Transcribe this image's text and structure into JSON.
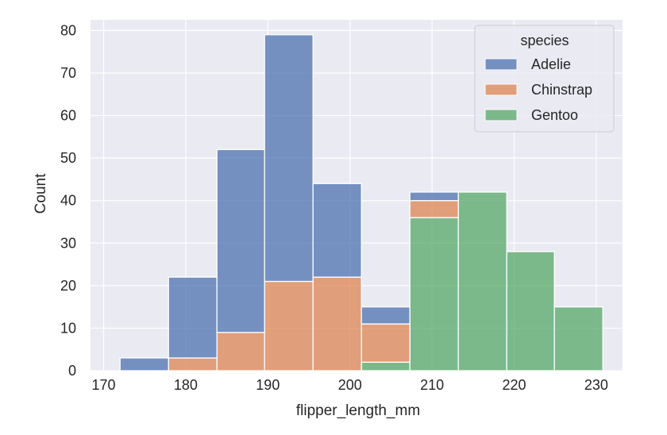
{
  "chart_data": {
    "type": "bar",
    "subtype": "stacked-histogram",
    "xlabel": "flipper_length_mm",
    "ylabel": "Count",
    "xlim": [
      168.4,
      233.2
    ],
    "ylim": [
      0,
      82.5
    ],
    "xticks": [
      170,
      180,
      190,
      200,
      210,
      220,
      230
    ],
    "yticks": [
      0,
      10,
      20,
      30,
      40,
      50,
      60,
      70,
      80
    ],
    "grid": true,
    "legend": {
      "title": "species",
      "placement": "top-right"
    },
    "bin_edges": [
      172.0,
      177.9,
      183.8,
      189.6,
      195.5,
      201.4,
      207.3,
      213.2,
      219.1,
      224.9,
      230.8
    ],
    "series": [
      {
        "name": "Gentoo",
        "color": "#55a868",
        "values": [
          0,
          0,
          0,
          0,
          0,
          2,
          36,
          42,
          28,
          15
        ]
      },
      {
        "name": "Chinstrap",
        "color": "#dd8452",
        "values": [
          0,
          3,
          9,
          21,
          22,
          9,
          4,
          0,
          0,
          0
        ]
      },
      {
        "name": "Adelie",
        "color": "#4c72b0",
        "values": [
          3,
          19,
          43,
          58,
          22,
          4,
          2,
          0,
          0,
          0
        ]
      }
    ],
    "legend_order": [
      "Adelie",
      "Chinstrap",
      "Gentoo"
    ],
    "style": {
      "plot_bg": "#eaeaf2",
      "grid": "#ffffff",
      "bar_opacity": 0.75
    }
  }
}
